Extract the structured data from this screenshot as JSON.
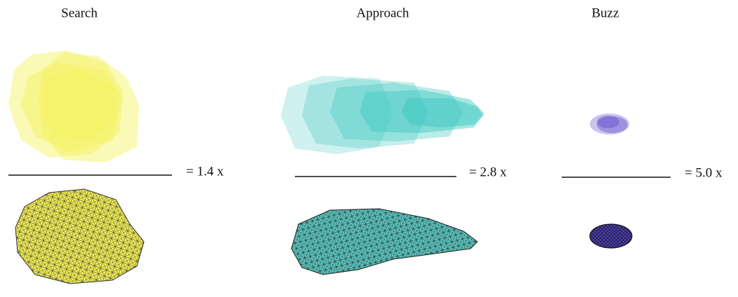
{
  "panels": [
    {
      "title": "Search",
      "scale": "= 1.4 x"
    },
    {
      "title": "Approach",
      "scale": "= 2.8 x"
    },
    {
      "title": "Buzz",
      "scale": "= 5.0 x"
    }
  ]
}
